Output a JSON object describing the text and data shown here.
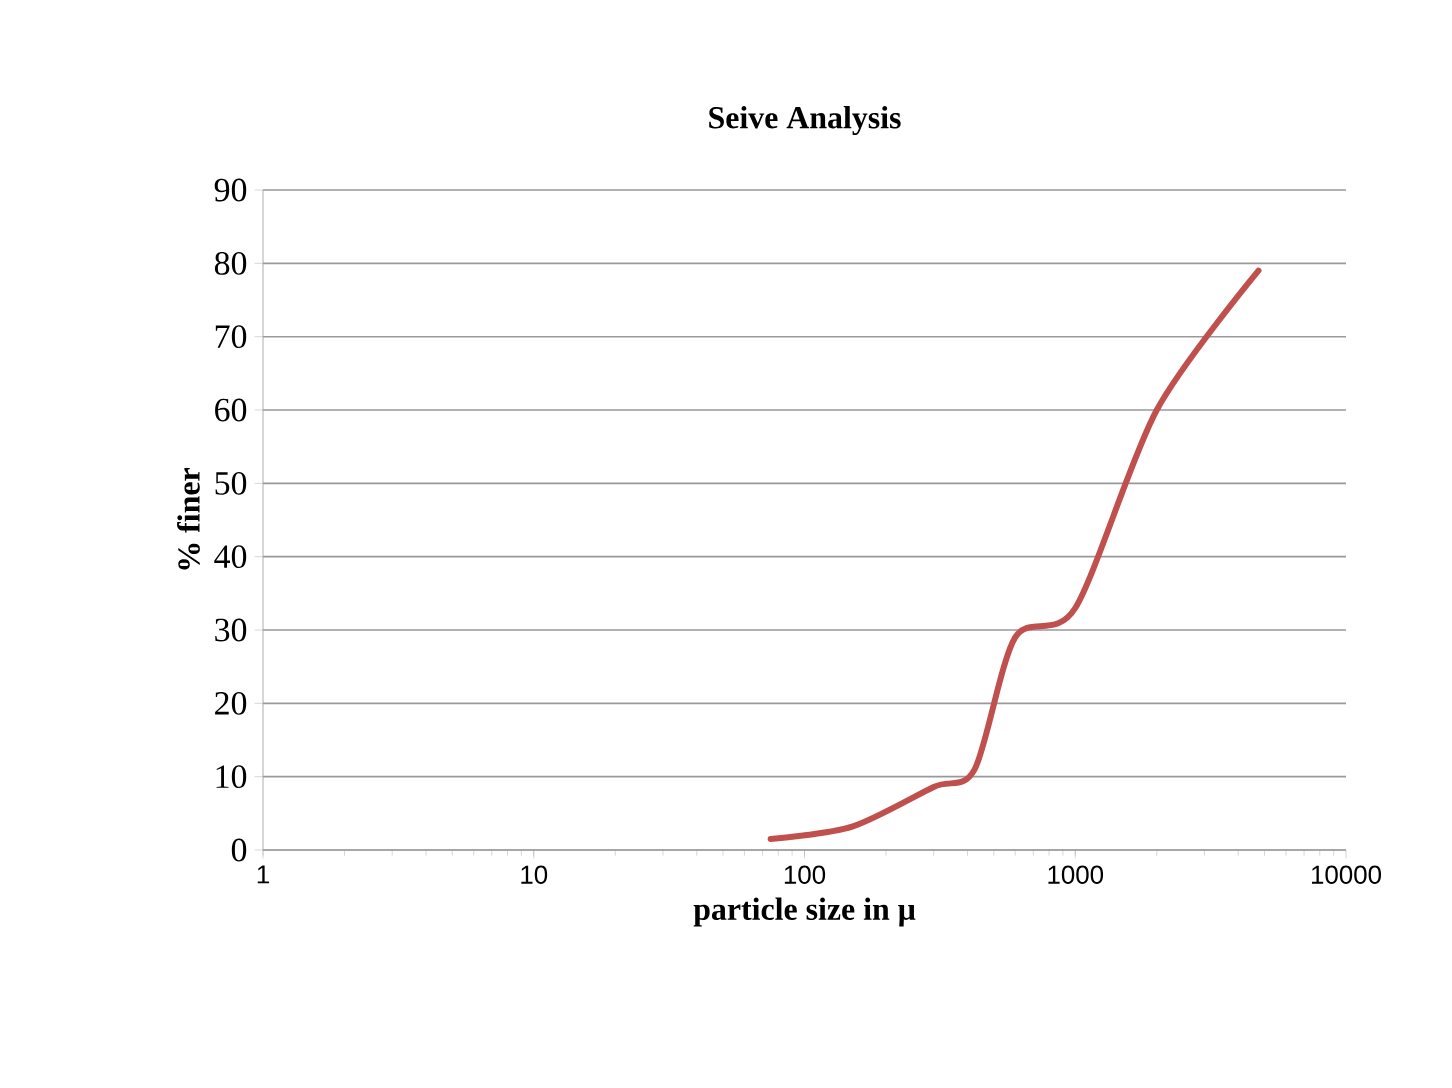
{
  "chart_data": {
    "type": "line",
    "title": "Seive Analysis",
    "xlabel": "particle size in μ",
    "ylabel": "% finer",
    "log": "x",
    "xlim": [
      1,
      10000
    ],
    "xticks": [
      1,
      10,
      100,
      1000,
      10000
    ],
    "ylim": [
      0,
      90
    ],
    "yticks": [
      0,
      10,
      20,
      30,
      40,
      50,
      60,
      70,
      80,
      90
    ],
    "grid": "y",
    "legend": false,
    "marker": "none",
    "line_style": "solid",
    "series": [
      {
        "color": "#c0504d",
        "x": [
          75,
          150,
          300,
          425,
          600,
          1000,
          2000,
          4750
        ],
        "values": [
          1.5,
          3.2,
          8.6,
          11,
          29,
          33,
          60,
          79
        ]
      }
    ]
  }
}
